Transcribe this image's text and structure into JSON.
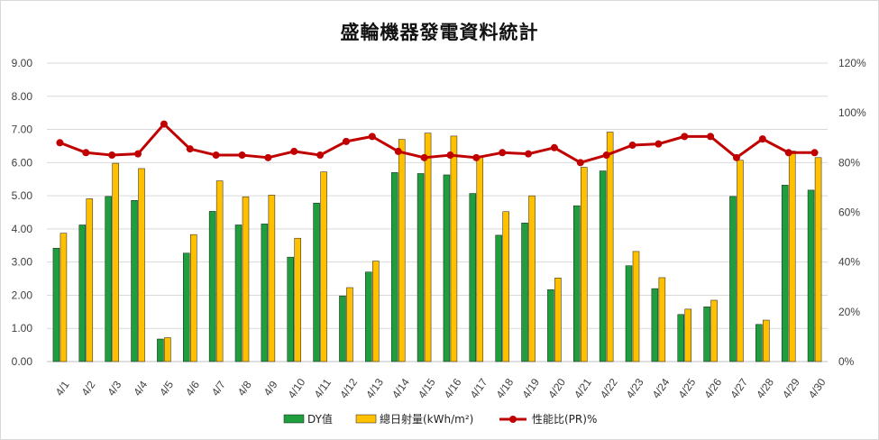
{
  "chart_data": {
    "type": "bar",
    "title": "盛輪機器發電資料統計",
    "categories": [
      "4/1",
      "4/2",
      "4/3",
      "4/4",
      "4/5",
      "4/6",
      "4/7",
      "4/8",
      "4/9",
      "4/10",
      "4/11",
      "4/12",
      "4/13",
      "4/14",
      "4/15",
      "4/16",
      "4/17",
      "4/18",
      "4/19",
      "4/20",
      "4/21",
      "4/22",
      "4/23",
      "4/24",
      "4/25",
      "4/26",
      "4/27",
      "4/28",
      "4/29",
      "4/30"
    ],
    "y_left": {
      "ylim": [
        0,
        9
      ],
      "ticks": [
        "0.00",
        "1.00",
        "2.00",
        "3.00",
        "4.00",
        "5.00",
        "6.00",
        "7.00",
        "8.00",
        "9.00"
      ]
    },
    "y_right": {
      "ylim": [
        0,
        120
      ],
      "ticks": [
        "0%",
        "20%",
        "40%",
        "60%",
        "80%",
        "100%",
        "120%"
      ]
    },
    "series": [
      {
        "name": "DY值",
        "type": "bar",
        "axis": "left",
        "color": "#1e9e3c",
        "values": [
          3.42,
          4.12,
          4.98,
          4.86,
          0.68,
          3.27,
          4.53,
          4.12,
          4.15,
          3.15,
          4.78,
          1.98,
          2.7,
          5.7,
          5.67,
          5.63,
          5.07,
          3.81,
          4.18,
          2.17,
          4.7,
          5.75,
          2.89,
          2.2,
          1.42,
          1.65,
          4.98,
          1.12,
          5.32,
          5.17
        ]
      },
      {
        "name": "總日射量(kWh/m²)",
        "type": "bar",
        "axis": "left",
        "color": "#ffc000",
        "values": [
          3.87,
          4.91,
          5.98,
          5.82,
          0.72,
          3.83,
          5.45,
          4.97,
          5.02,
          3.72,
          5.72,
          2.23,
          3.03,
          6.7,
          6.89,
          6.8,
          6.2,
          4.52,
          5.0,
          2.52,
          5.86,
          6.92,
          3.32,
          2.53,
          1.58,
          1.85,
          6.07,
          1.25,
          6.35,
          6.15
        ]
      },
      {
        "name": "性能比(PR)%",
        "type": "line",
        "axis": "right",
        "color": "#c00000",
        "values": [
          88,
          84,
          83,
          83.5,
          95.5,
          85.5,
          83,
          83,
          82,
          84.5,
          83,
          88.5,
          90.5,
          84.5,
          82,
          83,
          82,
          84,
          83.5,
          86,
          80,
          83,
          87,
          87.5,
          90.5,
          90.5,
          82,
          89.5,
          84,
          84
        ]
      }
    ],
    "legend_position": "bottom",
    "grid": true
  }
}
